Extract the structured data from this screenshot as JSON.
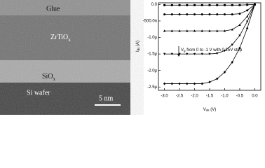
{
  "image": {
    "glue": "Glue",
    "zrtiox": {
      "main": "ZrTiO",
      "sub": "x"
    },
    "siox": {
      "main": "SiO",
      "sub": "x"
    },
    "wafer": "Si wafer",
    "scale": "5 nm"
  },
  "chart_data": {
    "type": "line",
    "annotation": {
      "main": "V",
      "sub": "g",
      "rest": " from 0 to -1 V with 0.25V step"
    },
    "xlabel": {
      "main": "V",
      "sub": "ds",
      "unit": " (V)"
    },
    "ylabel": {
      "main": "I",
      "sub": "ds",
      "unit": " (A)"
    },
    "x": [
      -3.0,
      -2.75,
      -2.5,
      -2.25,
      -2.0,
      -1.75,
      -1.5,
      -1.25,
      -1.0,
      -0.75,
      -0.5,
      -0.25,
      0.0
    ],
    "series": [
      {
        "color": "#000000",
        "marker": "square",
        "values": [
          -2e-08,
          -2e-08,
          -2e-08,
          -2e-08,
          -2e-08,
          -2e-08,
          -2e-08,
          -2e-08,
          -2e-08,
          -2e-08,
          -2e-08,
          -1e-08,
          0
        ]
      },
      {
        "color": "#000000",
        "marker": "circle",
        "values": [
          -3e-07,
          -3e-07,
          -3e-07,
          -3e-07,
          -3e-07,
          -3e-07,
          -3e-07,
          -3e-07,
          -3e-07,
          -3e-07,
          -2.8e-07,
          -1.8e-07,
          0
        ]
      },
      {
        "color": "#000000",
        "marker": "triangle",
        "values": [
          -8e-07,
          -8e-07,
          -8e-07,
          -8e-07,
          -8e-07,
          -8e-07,
          -8e-07,
          -8e-07,
          -8e-07,
          -7.6e-07,
          -6.2e-07,
          -3.6e-07,
          0
        ]
      },
      {
        "color": "#000000",
        "marker": "triangle-down",
        "values": [
          -1.5e-06,
          -1.5e-06,
          -1.5e-06,
          -1.5e-06,
          -1.5e-06,
          -1.5e-06,
          -1.5e-06,
          -1.48e-06,
          -1.4e-06,
          -1.22e-06,
          -9.4e-07,
          -5.2e-07,
          0
        ]
      },
      {
        "color": "#000000",
        "marker": "diamond",
        "values": [
          -2.4e-06,
          -2.4e-06,
          -2.4e-06,
          -2.4e-06,
          -2.4e-06,
          -2.4e-06,
          -2.35e-06,
          -2.25e-06,
          -2.05e-06,
          -1.75e-06,
          -1.32e-06,
          -7.2e-07,
          0
        ]
      }
    ],
    "xlim": [
      -3.2,
      0.2
    ],
    "xticks": [
      {
        "value": -3.0,
        "label": "-3.0"
      },
      {
        "value": -2.5,
        "label": "-2.5"
      },
      {
        "value": -2.0,
        "label": "-2.0"
      },
      {
        "value": -1.5,
        "label": "-1.5"
      },
      {
        "value": -1.0,
        "label": "-1.0"
      },
      {
        "value": -0.5,
        "label": "-0.5"
      },
      {
        "value": 0,
        "label": "0.0"
      }
    ],
    "ylim": [
      -2.6e-06,
      5e-08
    ],
    "yticks": [
      {
        "value": 0,
        "label": "0.0"
      },
      {
        "value": -5e-07,
        "label": "-500.0n"
      },
      {
        "value": -1e-06,
        "label": "-1.0µ"
      },
      {
        "value": -1.5e-06,
        "label": "-1.5µ"
      },
      {
        "value": -2e-06,
        "label": "-2.0µ"
      },
      {
        "value": -2.5e-06,
        "label": "-2.5µ"
      }
    ],
    "grid": false
  }
}
